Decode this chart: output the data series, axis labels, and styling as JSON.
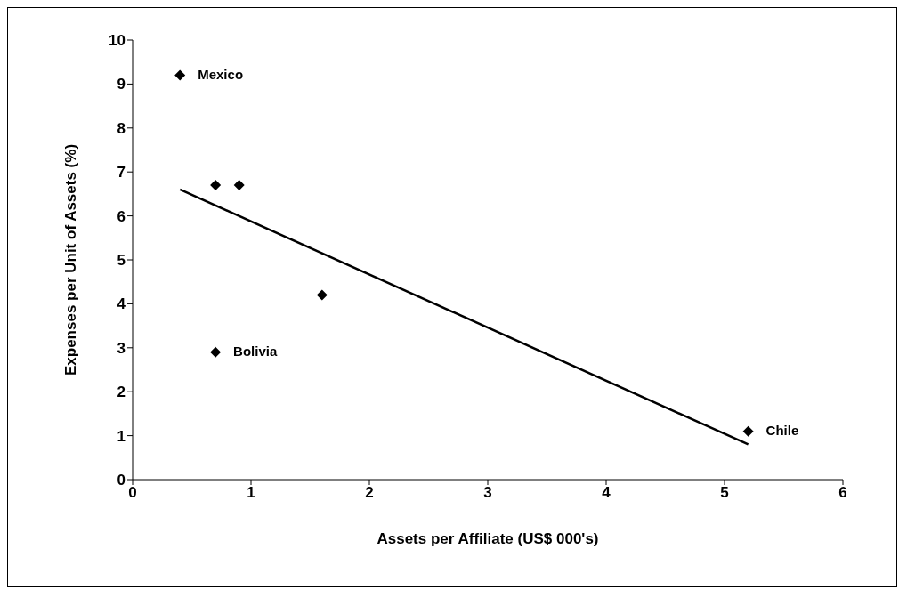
{
  "chart_data": {
    "type": "scatter",
    "xlabel": "Assets per Affiliate (US$ 000's)",
    "ylabel": "Expenses per Unit of Assets (%)",
    "xlim": [
      0,
      6
    ],
    "xticks": [
      0,
      1,
      2,
      3,
      4,
      5,
      6
    ],
    "ylim": [
      0,
      10
    ],
    "yticks": [
      0,
      1,
      2,
      3,
      4,
      5,
      6,
      7,
      8,
      9,
      10
    ],
    "grid": false,
    "legend": false,
    "marker": "diamond",
    "series": [
      {
        "color": "#000000",
        "x": [
          0.4,
          0.7,
          0.9,
          1.6,
          0.7,
          5.2
        ],
        "values": [
          9.2,
          6.7,
          6.7,
          4.2,
          2.9,
          1.1
        ]
      },
      {
        "type": "line",
        "color": "#000000",
        "x": [
          0.4,
          5.2
        ],
        "values": [
          6.6,
          0.8
        ],
        "marker": "none",
        "line_style": "solid"
      }
    ],
    "annotations": [
      {
        "text": "Mexico",
        "x": 0.4,
        "y": 9.2
      },
      {
        "text": "Bolivia",
        "x": 0.7,
        "y": 2.9
      },
      {
        "text": "Chile",
        "x": 5.2,
        "y": 1.1
      }
    ]
  }
}
